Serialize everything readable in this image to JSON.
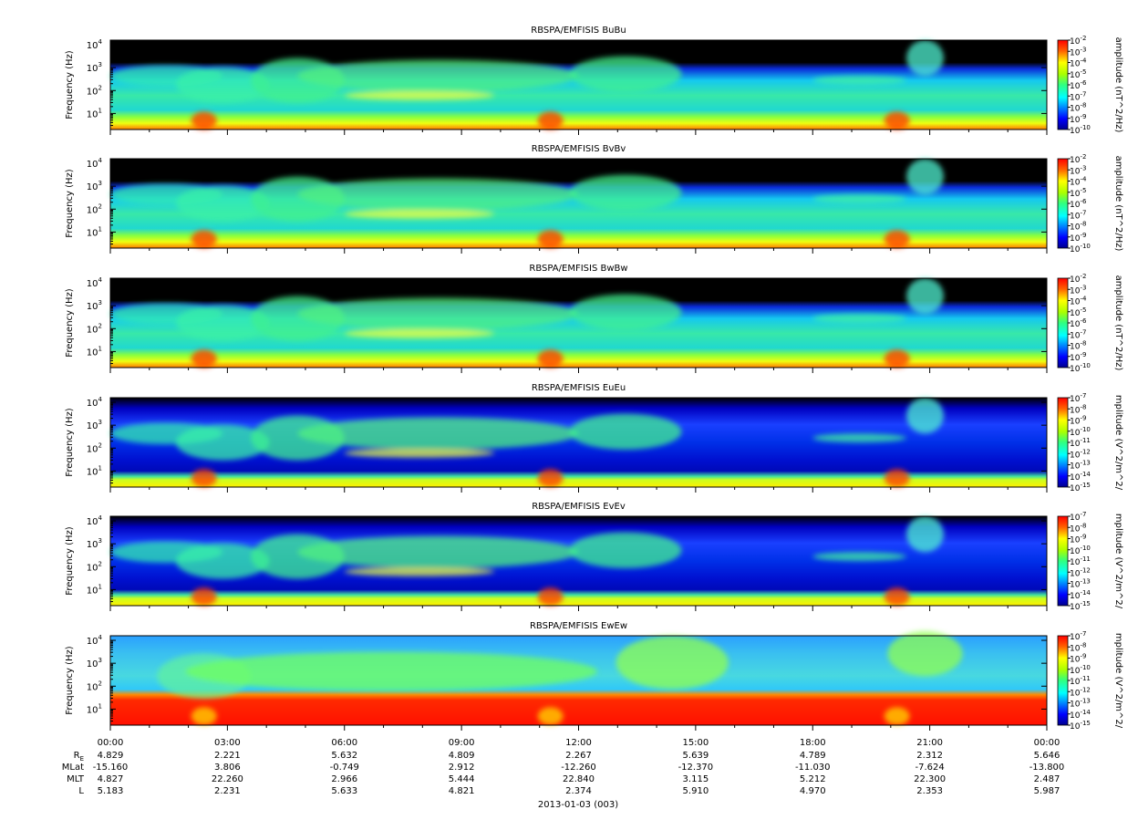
{
  "chart_data": [
    {
      "type": "heatmap",
      "title": "RBSPA/EMFISIS  BuBu",
      "ylabel": "Frequency (Hz)",
      "yscale": "log",
      "y_ticks": [
        "10",
        "10",
        "10",
        "10"
      ],
      "y_tick_exponents": [
        "1",
        "2",
        "3",
        "4"
      ],
      "colorbar_label": "amplitude (nT^2/Hz)",
      "colorbar_scale": "log",
      "colorbar_range": [
        1e-10,
        0.01
      ],
      "colorbar_ticks": [
        "10",
        "10",
        "10",
        "10",
        "10",
        "10",
        "10",
        "10",
        "10"
      ],
      "colorbar_exponents": [
        "-10",
        "-9",
        "-8",
        "-7",
        "-6",
        "-5",
        "-4",
        "-3",
        "-2"
      ],
      "kind": "b"
    },
    {
      "type": "heatmap",
      "title": "RBSPA/EMFISIS  BvBv",
      "ylabel": "Frequency (Hz)",
      "yscale": "log",
      "y_ticks": [
        "10",
        "10",
        "10",
        "10"
      ],
      "y_tick_exponents": [
        "1",
        "2",
        "3",
        "4"
      ],
      "colorbar_label": "amplitude (nT^2/Hz)",
      "colorbar_scale": "log",
      "colorbar_range": [
        1e-10,
        0.01
      ],
      "colorbar_ticks": [
        "10",
        "10",
        "10",
        "10",
        "10",
        "10",
        "10",
        "10",
        "10"
      ],
      "colorbar_exponents": [
        "-10",
        "-9",
        "-8",
        "-7",
        "-6",
        "-5",
        "-4",
        "-3",
        "-2"
      ],
      "kind": "b"
    },
    {
      "type": "heatmap",
      "title": "RBSPA/EMFISIS  BwBw",
      "ylabel": "Frequency (Hz)",
      "yscale": "log",
      "y_ticks": [
        "10",
        "10",
        "10",
        "10"
      ],
      "y_tick_exponents": [
        "1",
        "2",
        "3",
        "4"
      ],
      "colorbar_label": "amplitude (nT^2/Hz)",
      "colorbar_scale": "log",
      "colorbar_range": [
        1e-10,
        0.01
      ],
      "colorbar_ticks": [
        "10",
        "10",
        "10",
        "10",
        "10",
        "10",
        "10",
        "10",
        "10"
      ],
      "colorbar_exponents": [
        "-10",
        "-9",
        "-8",
        "-7",
        "-6",
        "-5",
        "-4",
        "-3",
        "-2"
      ],
      "kind": "b"
    },
    {
      "type": "heatmap",
      "title": "RBSPA/EMFISIS  EuEu",
      "ylabel": "Frequency (Hz)",
      "yscale": "log",
      "y_ticks": [
        "10",
        "10",
        "10",
        "10"
      ],
      "y_tick_exponents": [
        "1",
        "2",
        "3",
        "4"
      ],
      "colorbar_label": "mplitude (V^2/m^2/",
      "colorbar_scale": "log",
      "colorbar_range": [
        1e-15,
        1e-07
      ],
      "colorbar_ticks": [
        "10",
        "10",
        "10",
        "10",
        "10",
        "10",
        "10",
        "10",
        "10"
      ],
      "colorbar_exponents": [
        "-15",
        "-14",
        "-13",
        "-12",
        "-11",
        "-10",
        "-9",
        "-8",
        "-7"
      ],
      "kind": "e"
    },
    {
      "type": "heatmap",
      "title": "RBSPA/EMFISIS  EvEv",
      "ylabel": "Frequency (Hz)",
      "yscale": "log",
      "y_ticks": [
        "10",
        "10",
        "10",
        "10"
      ],
      "y_tick_exponents": [
        "1",
        "2",
        "3",
        "4"
      ],
      "colorbar_label": "mplitude (V^2/m^2/",
      "colorbar_scale": "log",
      "colorbar_range": [
        1e-15,
        1e-07
      ],
      "colorbar_ticks": [
        "10",
        "10",
        "10",
        "10",
        "10",
        "10",
        "10",
        "10",
        "10"
      ],
      "colorbar_exponents": [
        "-15",
        "-14",
        "-13",
        "-12",
        "-11",
        "-10",
        "-9",
        "-8",
        "-7"
      ],
      "kind": "e"
    },
    {
      "type": "heatmap",
      "title": "RBSPA/EMFISIS  EwEw",
      "ylabel": "Frequency (Hz)",
      "yscale": "log",
      "y_ticks": [
        "10",
        "10",
        "10",
        "10"
      ],
      "y_tick_exponents": [
        "1",
        "2",
        "3",
        "4"
      ],
      "colorbar_label": "mplitude (V^2/m^2/",
      "colorbar_scale": "log",
      "colorbar_range": [
        1e-15,
        1e-07
      ],
      "colorbar_ticks": [
        "10",
        "10",
        "10",
        "10",
        "10",
        "10",
        "10",
        "10",
        "10"
      ],
      "colorbar_exponents": [
        "-15",
        "-14",
        "-13",
        "-12",
        "-11",
        "-10",
        "-9",
        "-8",
        "-7"
      ],
      "kind": "ew"
    }
  ],
  "x_axis": {
    "ticks": [
      "00:00",
      "03:00",
      "06:00",
      "09:00",
      "12:00",
      "15:00",
      "18:00",
      "21:00",
      "00:00"
    ],
    "date_label": "2013-01-03 (003)"
  },
  "ephemeris": [
    {
      "label": "R",
      "label_sub": "E",
      "values": [
        "4.829",
        "2.221",
        "5.632",
        "4.809",
        "2.267",
        "5.639",
        "4.789",
        "2.312",
        "5.646"
      ]
    },
    {
      "label": "MLat",
      "label_sub": "",
      "values": [
        "-15.160",
        "3.806",
        "-0.749",
        "2.912",
        "-12.260",
        "-12.370",
        "-11.030",
        "-7.624",
        "-13.800"
      ]
    },
    {
      "label": "MLT",
      "label_sub": "",
      "values": [
        "4.827",
        "22.260",
        "2.966",
        "5.444",
        "22.840",
        "3.115",
        "5.212",
        "22.300",
        "2.487"
      ]
    },
    {
      "label": "L",
      "label_sub": "",
      "values": [
        "5.183",
        "2.231",
        "5.633",
        "4.821",
        "2.374",
        "5.910",
        "4.970",
        "2.353",
        "5.987"
      ]
    }
  ]
}
